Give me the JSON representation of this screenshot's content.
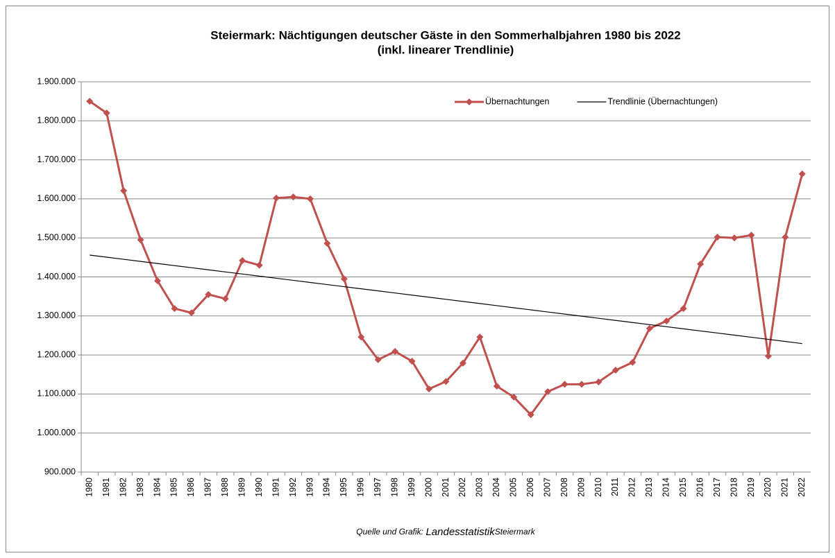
{
  "chart_data": {
    "type": "line",
    "title": "Steiermark: Nächtigungen deutscher Gäste in den Sommerhalbjahren 1980 bis 2022",
    "subtitle": "(inkl. linearer Trendlinie)",
    "categories": [
      "1980",
      "1981",
      "1982",
      "1983",
      "1984",
      "1985",
      "1986",
      "1987",
      "1988",
      "1989",
      "1990",
      "1991",
      "1992",
      "1993",
      "1994",
      "1995",
      "1996",
      "1997",
      "1998",
      "1999",
      "2000",
      "2001",
      "2002",
      "2003",
      "2004",
      "2005",
      "2006",
      "2007",
      "2008",
      "2009",
      "2010",
      "2011",
      "2012",
      "2013",
      "2014",
      "2015",
      "2016",
      "2017",
      "2018",
      "2019",
      "2020",
      "2021",
      "2022"
    ],
    "series": [
      {
        "name": "Übernachtungen",
        "color": "#c0504d",
        "marker": "diamond",
        "values": [
          1850000,
          1820000,
          1621000,
          1495000,
          1390000,
          1319000,
          1308000,
          1355000,
          1344000,
          1442000,
          1430000,
          1602000,
          1605000,
          1600000,
          1486000,
          1395000,
          1246000,
          1188000,
          1209000,
          1184000,
          1113000,
          1132000,
          1179000,
          1246000,
          1120000,
          1092000,
          1047000,
          1106000,
          1125000,
          1125000,
          1131000,
          1161000,
          1181000,
          1268000,
          1287000,
          1319000,
          1433000,
          1502000,
          1500000,
          1507000,
          1197000,
          1502000,
          1664000
        ]
      },
      {
        "name": "Trendlinie (Übernachtungen)",
        "color": "#000000",
        "marker": "none",
        "values": [
          1456000,
          1450600,
          1445200,
          1439800,
          1434400,
          1429000,
          1423600,
          1418200,
          1412800,
          1407400,
          1402000,
          1396600,
          1391200,
          1385800,
          1380400,
          1375000,
          1369600,
          1364200,
          1358800,
          1353400,
          1348000,
          1342600,
          1337200,
          1331800,
          1326400,
          1321000,
          1315600,
          1310200,
          1304800,
          1299400,
          1294000,
          1288600,
          1283200,
          1277800,
          1272400,
          1267000,
          1261600,
          1256200,
          1250800,
          1245400,
          1240000,
          1234600,
          1229200
        ]
      }
    ],
    "ylim": [
      900000,
      1900000
    ],
    "yticks": [
      {
        "value": 900000,
        "label": "900.000"
      },
      {
        "value": 1000000,
        "label": "1.000.000"
      },
      {
        "value": 1100000,
        "label": "1.100.000"
      },
      {
        "value": 1200000,
        "label": "1.200.000"
      },
      {
        "value": 1300000,
        "label": "1.300.000"
      },
      {
        "value": 1400000,
        "label": "1.400.000"
      },
      {
        "value": 1500000,
        "label": "1.500.000"
      },
      {
        "value": 1600000,
        "label": "1.600.000"
      },
      {
        "value": 1700000,
        "label": "1.700.000"
      },
      {
        "value": 1800000,
        "label": "1.800.000"
      },
      {
        "value": 1900000,
        "label": "1.900.000"
      }
    ],
    "grid": true,
    "legend": "top-right",
    "source": [
      "Quelle und Grafik:",
      "Landesstatistik",
      "Steiermark"
    ]
  }
}
